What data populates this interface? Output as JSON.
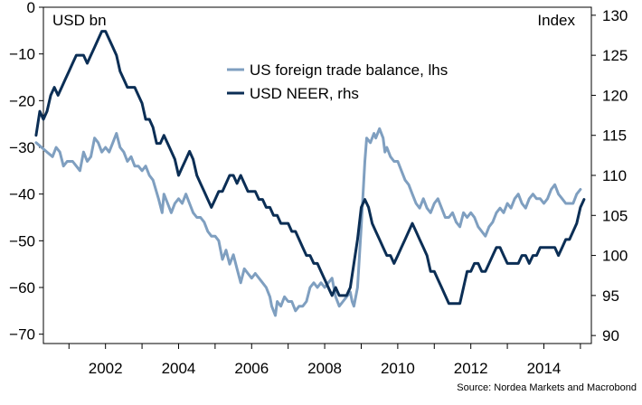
{
  "chart_data": {
    "type": "line",
    "left_axis_label": "USD bn",
    "right_axis_label": "Index",
    "source": "Source: Nordea Markets and Macrobond",
    "xlim": [
      2000.3,
      2015.3
    ],
    "ylim_left": [
      -72,
      0
    ],
    "ylim_right": [
      89,
      131
    ],
    "x_ticks": [
      2002,
      2004,
      2006,
      2008,
      2010,
      2012,
      2014
    ],
    "y_ticks_left": [
      0,
      -10,
      -20,
      -30,
      -40,
      -50,
      -60,
      -70
    ],
    "y_ticks_right": [
      130,
      125,
      120,
      115,
      110,
      105,
      100,
      95,
      90
    ],
    "legend": {
      "placement": "top-center"
    },
    "series": [
      {
        "name": "US foreign trade balance, lhs",
        "axis": "left",
        "color": "#7f9fc0",
        "points": [
          [
            2000.1,
            -29
          ],
          [
            2000.25,
            -30
          ],
          [
            2000.4,
            -31
          ],
          [
            2000.55,
            -32
          ],
          [
            2000.65,
            -30
          ],
          [
            2000.75,
            -31
          ],
          [
            2000.85,
            -34
          ],
          [
            2000.95,
            -33
          ],
          [
            2001.1,
            -33
          ],
          [
            2001.2,
            -34
          ],
          [
            2001.3,
            -35
          ],
          [
            2001.4,
            -31
          ],
          [
            2001.5,
            -33
          ],
          [
            2001.6,
            -32
          ],
          [
            2001.7,
            -28
          ],
          [
            2001.8,
            -29
          ],
          [
            2001.9,
            -31
          ],
          [
            2002.0,
            -30
          ],
          [
            2002.1,
            -31
          ],
          [
            2002.2,
            -29
          ],
          [
            2002.3,
            -27
          ],
          [
            2002.4,
            -30
          ],
          [
            2002.5,
            -31
          ],
          [
            2002.6,
            -33
          ],
          [
            2002.7,
            -32
          ],
          [
            2002.8,
            -34
          ],
          [
            2002.9,
            -34
          ],
          [
            2003.0,
            -35
          ],
          [
            2003.1,
            -34
          ],
          [
            2003.2,
            -36
          ],
          [
            2003.3,
            -37
          ],
          [
            2003.45,
            -41
          ],
          [
            2003.55,
            -44
          ],
          [
            2003.6,
            -40
          ],
          [
            2003.7,
            -42
          ],
          [
            2003.8,
            -44
          ],
          [
            2003.9,
            -42
          ],
          [
            2004.0,
            -41
          ],
          [
            2004.1,
            -42
          ],
          [
            2004.2,
            -40
          ],
          [
            2004.3,
            -42
          ],
          [
            2004.4,
            -44
          ],
          [
            2004.5,
            -45
          ],
          [
            2004.6,
            -45
          ],
          [
            2004.7,
            -46
          ],
          [
            2004.8,
            -48
          ],
          [
            2004.9,
            -49
          ],
          [
            2005.0,
            -49
          ],
          [
            2005.1,
            -50
          ],
          [
            2005.2,
            -54
          ],
          [
            2005.3,
            -52
          ],
          [
            2005.4,
            -55
          ],
          [
            2005.5,
            -53
          ],
          [
            2005.6,
            -56
          ],
          [
            2005.7,
            -59
          ],
          [
            2005.8,
            -56
          ],
          [
            2005.9,
            -57
          ],
          [
            2006.0,
            -58
          ],
          [
            2006.1,
            -57
          ],
          [
            2006.2,
            -58
          ],
          [
            2006.3,
            -59
          ],
          [
            2006.4,
            -60
          ],
          [
            2006.5,
            -62
          ],
          [
            2006.55,
            -64
          ],
          [
            2006.6,
            -65
          ],
          [
            2006.65,
            -66
          ],
          [
            2006.7,
            -63
          ],
          [
            2006.8,
            -64
          ],
          [
            2006.9,
            -62
          ],
          [
            2007.0,
            -63
          ],
          [
            2007.1,
            -63
          ],
          [
            2007.2,
            -65
          ],
          [
            2007.3,
            -64
          ],
          [
            2007.4,
            -64
          ],
          [
            2007.5,
            -63
          ],
          [
            2007.6,
            -60
          ],
          [
            2007.7,
            -59
          ],
          [
            2007.8,
            -60
          ],
          [
            2007.9,
            -59
          ],
          [
            2008.0,
            -60
          ],
          [
            2008.1,
            -59
          ],
          [
            2008.2,
            -58
          ],
          [
            2008.3,
            -62
          ],
          [
            2008.4,
            -64
          ],
          [
            2008.5,
            -63
          ],
          [
            2008.6,
            -62
          ],
          [
            2008.7,
            -61
          ],
          [
            2008.75,
            -63
          ],
          [
            2008.8,
            -64
          ],
          [
            2008.9,
            -60
          ],
          [
            2009.0,
            -47
          ],
          [
            2009.05,
            -40
          ],
          [
            2009.1,
            -33
          ],
          [
            2009.15,
            -28
          ],
          [
            2009.25,
            -29
          ],
          [
            2009.35,
            -27
          ],
          [
            2009.4,
            -28
          ],
          [
            2009.5,
            -26
          ],
          [
            2009.6,
            -28
          ],
          [
            2009.65,
            -31
          ],
          [
            2009.7,
            -30
          ],
          [
            2009.8,
            -32
          ],
          [
            2009.9,
            -33
          ],
          [
            2010.0,
            -33
          ],
          [
            2010.1,
            -35
          ],
          [
            2010.2,
            -37
          ],
          [
            2010.3,
            -38
          ],
          [
            2010.4,
            -40
          ],
          [
            2010.5,
            -42
          ],
          [
            2010.6,
            -43
          ],
          [
            2010.7,
            -41
          ],
          [
            2010.8,
            -43
          ],
          [
            2010.9,
            -44
          ],
          [
            2011.0,
            -42
          ],
          [
            2011.1,
            -41
          ],
          [
            2011.2,
            -43
          ],
          [
            2011.3,
            -45
          ],
          [
            2011.4,
            -45
          ],
          [
            2011.5,
            -44
          ],
          [
            2011.6,
            -46
          ],
          [
            2011.7,
            -47
          ],
          [
            2011.8,
            -44
          ],
          [
            2011.9,
            -45
          ],
          [
            2012.0,
            -44
          ],
          [
            2012.1,
            -45
          ],
          [
            2012.2,
            -47
          ],
          [
            2012.3,
            -48
          ],
          [
            2012.4,
            -49
          ],
          [
            2012.5,
            -47
          ],
          [
            2012.6,
            -46
          ],
          [
            2012.7,
            -44
          ],
          [
            2012.8,
            -43
          ],
          [
            2012.9,
            -44
          ],
          [
            2013.0,
            -42
          ],
          [
            2013.1,
            -43
          ],
          [
            2013.2,
            -41
          ],
          [
            2013.3,
            -40
          ],
          [
            2013.4,
            -42
          ],
          [
            2013.5,
            -43
          ],
          [
            2013.6,
            -41
          ],
          [
            2013.7,
            -40
          ],
          [
            2013.8,
            -41
          ],
          [
            2013.9,
            -41
          ],
          [
            2014.0,
            -42
          ],
          [
            2014.1,
            -41
          ],
          [
            2014.2,
            -39
          ],
          [
            2014.3,
            -38
          ],
          [
            2014.4,
            -40
          ],
          [
            2014.5,
            -41
          ],
          [
            2014.6,
            -42
          ],
          [
            2014.7,
            -42
          ],
          [
            2014.8,
            -42
          ],
          [
            2014.9,
            -40
          ],
          [
            2015.0,
            -39
          ]
        ]
      },
      {
        "name": "USD NEER, rhs",
        "axis": "right",
        "color": "#0b2e55",
        "points": [
          [
            2000.1,
            115
          ],
          [
            2000.2,
            118
          ],
          [
            2000.3,
            117
          ],
          [
            2000.4,
            118
          ],
          [
            2000.5,
            120
          ],
          [
            2000.6,
            121
          ],
          [
            2000.7,
            120
          ],
          [
            2000.8,
            121
          ],
          [
            2000.9,
            122
          ],
          [
            2001.0,
            123
          ],
          [
            2001.1,
            124
          ],
          [
            2001.2,
            125
          ],
          [
            2001.3,
            125
          ],
          [
            2001.4,
            125
          ],
          [
            2001.5,
            124
          ],
          [
            2001.6,
            125
          ],
          [
            2001.7,
            126
          ],
          [
            2001.8,
            127
          ],
          [
            2001.9,
            128
          ],
          [
            2002.0,
            128
          ],
          [
            2002.1,
            127
          ],
          [
            2002.2,
            126
          ],
          [
            2002.3,
            125
          ],
          [
            2002.4,
            123
          ],
          [
            2002.5,
            122
          ],
          [
            2002.6,
            121
          ],
          [
            2002.7,
            121
          ],
          [
            2002.8,
            121
          ],
          [
            2002.9,
            120
          ],
          [
            2003.0,
            119
          ],
          [
            2003.1,
            117
          ],
          [
            2003.2,
            117
          ],
          [
            2003.3,
            116
          ],
          [
            2003.4,
            114
          ],
          [
            2003.5,
            114
          ],
          [
            2003.6,
            115
          ],
          [
            2003.7,
            114
          ],
          [
            2003.8,
            113
          ],
          [
            2003.9,
            112
          ],
          [
            2004.0,
            110
          ],
          [
            2004.1,
            111
          ],
          [
            2004.2,
            112
          ],
          [
            2004.3,
            113
          ],
          [
            2004.4,
            112
          ],
          [
            2004.5,
            110
          ],
          [
            2004.6,
            109
          ],
          [
            2004.7,
            108
          ],
          [
            2004.8,
            107
          ],
          [
            2004.9,
            106
          ],
          [
            2005.0,
            107
          ],
          [
            2005.1,
            108
          ],
          [
            2005.2,
            108
          ],
          [
            2005.3,
            109
          ],
          [
            2005.4,
            110
          ],
          [
            2005.5,
            110
          ],
          [
            2005.6,
            109
          ],
          [
            2005.7,
            110
          ],
          [
            2005.8,
            109
          ],
          [
            2005.9,
            108
          ],
          [
            2006.0,
            108
          ],
          [
            2006.1,
            108
          ],
          [
            2006.2,
            107
          ],
          [
            2006.3,
            107
          ],
          [
            2006.4,
            106
          ],
          [
            2006.5,
            106
          ],
          [
            2006.6,
            105
          ],
          [
            2006.7,
            105
          ],
          [
            2006.8,
            104
          ],
          [
            2006.9,
            104
          ],
          [
            2007.0,
            104
          ],
          [
            2007.1,
            103
          ],
          [
            2007.2,
            103
          ],
          [
            2007.3,
            102
          ],
          [
            2007.4,
            101
          ],
          [
            2007.5,
            100
          ],
          [
            2007.6,
            100
          ],
          [
            2007.7,
            99
          ],
          [
            2007.8,
            99
          ],
          [
            2007.9,
            98
          ],
          [
            2008.0,
            97
          ],
          [
            2008.1,
            96
          ],
          [
            2008.2,
            95
          ],
          [
            2008.3,
            96
          ],
          [
            2008.4,
            95
          ],
          [
            2008.5,
            95
          ],
          [
            2008.6,
            95
          ],
          [
            2008.7,
            96
          ],
          [
            2008.8,
            99
          ],
          [
            2008.9,
            102
          ],
          [
            2009.0,
            106
          ],
          [
            2009.1,
            107
          ],
          [
            2009.2,
            106
          ],
          [
            2009.3,
            104
          ],
          [
            2009.4,
            103
          ],
          [
            2009.5,
            102
          ],
          [
            2009.6,
            101
          ],
          [
            2009.7,
            100
          ],
          [
            2009.8,
            100
          ],
          [
            2009.9,
            99
          ],
          [
            2010.0,
            100
          ],
          [
            2010.1,
            101
          ],
          [
            2010.2,
            102
          ],
          [
            2010.3,
            103
          ],
          [
            2010.4,
            104
          ],
          [
            2010.5,
            103
          ],
          [
            2010.6,
            102
          ],
          [
            2010.7,
            101
          ],
          [
            2010.8,
            100
          ],
          [
            2010.9,
            98
          ],
          [
            2011.0,
            98
          ],
          [
            2011.1,
            97
          ],
          [
            2011.2,
            96
          ],
          [
            2011.3,
            95
          ],
          [
            2011.4,
            94
          ],
          [
            2011.5,
            94
          ],
          [
            2011.6,
            94
          ],
          [
            2011.7,
            94
          ],
          [
            2011.8,
            96
          ],
          [
            2011.9,
            98
          ],
          [
            2012.0,
            98
          ],
          [
            2012.1,
            99
          ],
          [
            2012.2,
            99
          ],
          [
            2012.3,
            98
          ],
          [
            2012.4,
            98
          ],
          [
            2012.5,
            99
          ],
          [
            2012.6,
            100
          ],
          [
            2012.7,
            101
          ],
          [
            2012.8,
            101
          ],
          [
            2012.9,
            100
          ],
          [
            2013.0,
            99
          ],
          [
            2013.1,
            99
          ],
          [
            2013.2,
            99
          ],
          [
            2013.3,
            99
          ],
          [
            2013.4,
            100
          ],
          [
            2013.5,
            100
          ],
          [
            2013.6,
            99
          ],
          [
            2013.7,
            100
          ],
          [
            2013.8,
            100
          ],
          [
            2013.9,
            101
          ],
          [
            2014.0,
            101
          ],
          [
            2014.1,
            101
          ],
          [
            2014.2,
            101
          ],
          [
            2014.3,
            101
          ],
          [
            2014.4,
            100
          ],
          [
            2014.5,
            101
          ],
          [
            2014.6,
            102
          ],
          [
            2014.7,
            102
          ],
          [
            2014.8,
            103
          ],
          [
            2014.9,
            104
          ],
          [
            2015.0,
            106
          ],
          [
            2015.1,
            107
          ]
        ]
      }
    ]
  }
}
